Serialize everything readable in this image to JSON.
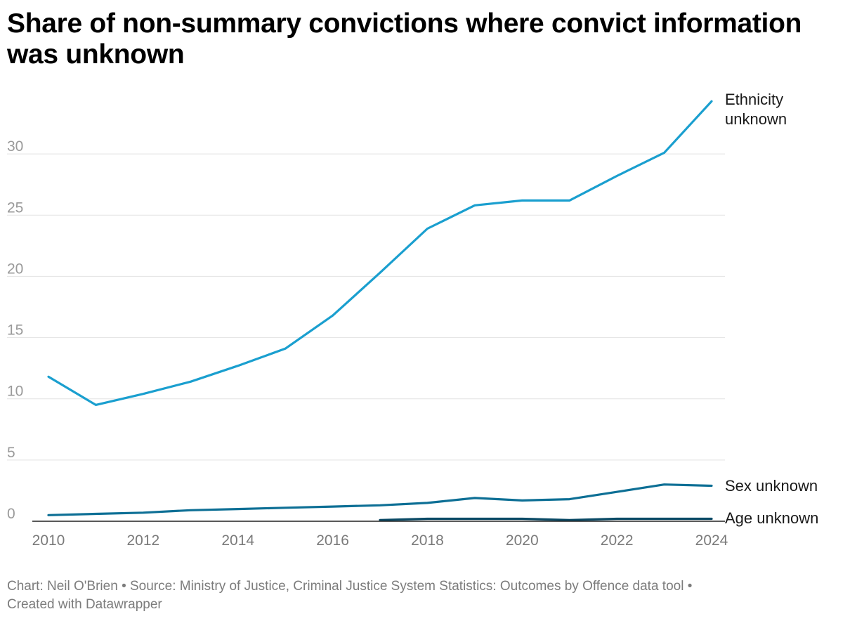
{
  "title": "Share of non-summary convictions where convict information was unknown",
  "footer": {
    "line1": "Chart: Neil O'Brien • Source: Ministry of Justice, Criminal Justice System Statistics: Outcomes by Offence data tool •",
    "line2": "Created with Datawrapper"
  },
  "chart_data": {
    "type": "line",
    "title": "Share of non-summary convictions where convict information was unknown",
    "xlabel": "",
    "ylabel": "",
    "x": [
      2010,
      2011,
      2012,
      2013,
      2014,
      2015,
      2016,
      2017,
      2018,
      2019,
      2020,
      2021,
      2022,
      2023,
      2024
    ],
    "x_ticks": [
      "2010",
      "2012",
      "2014",
      "2016",
      "2018",
      "2020",
      "2022",
      "2024"
    ],
    "y_ticks": [
      "0",
      "5",
      "10",
      "15",
      "20",
      "25",
      "30"
    ],
    "xlim": [
      2010,
      2024
    ],
    "ylim": [
      0,
      35
    ],
    "grid": true,
    "legend": "direct labels at line ends",
    "series": [
      {
        "name": "Ethnicity unknown",
        "label_lines": [
          "Ethnicity",
          "unknown"
        ],
        "color": "#1a9fcf",
        "values": [
          11.8,
          9.5,
          10.4,
          11.4,
          12.7,
          14.1,
          16.8,
          20.3,
          23.9,
          25.8,
          26.2,
          26.2,
          28.2,
          30.1,
          34.3
        ]
      },
      {
        "name": "Sex unknown",
        "label_lines": [
          "Sex unknown"
        ],
        "color": "#0d6f95",
        "values": [
          0.5,
          0.6,
          0.7,
          0.9,
          1.0,
          1.1,
          1.2,
          1.3,
          1.5,
          1.9,
          1.7,
          1.8,
          2.4,
          3.0,
          2.9
        ]
      },
      {
        "name": "Age unknown",
        "label_lines": [
          "Age unknown"
        ],
        "color": "#0a4a66",
        "values": [
          null,
          null,
          null,
          null,
          null,
          null,
          null,
          0.1,
          0.2,
          0.2,
          0.2,
          0.1,
          0.2,
          0.2,
          0.2
        ]
      }
    ]
  }
}
